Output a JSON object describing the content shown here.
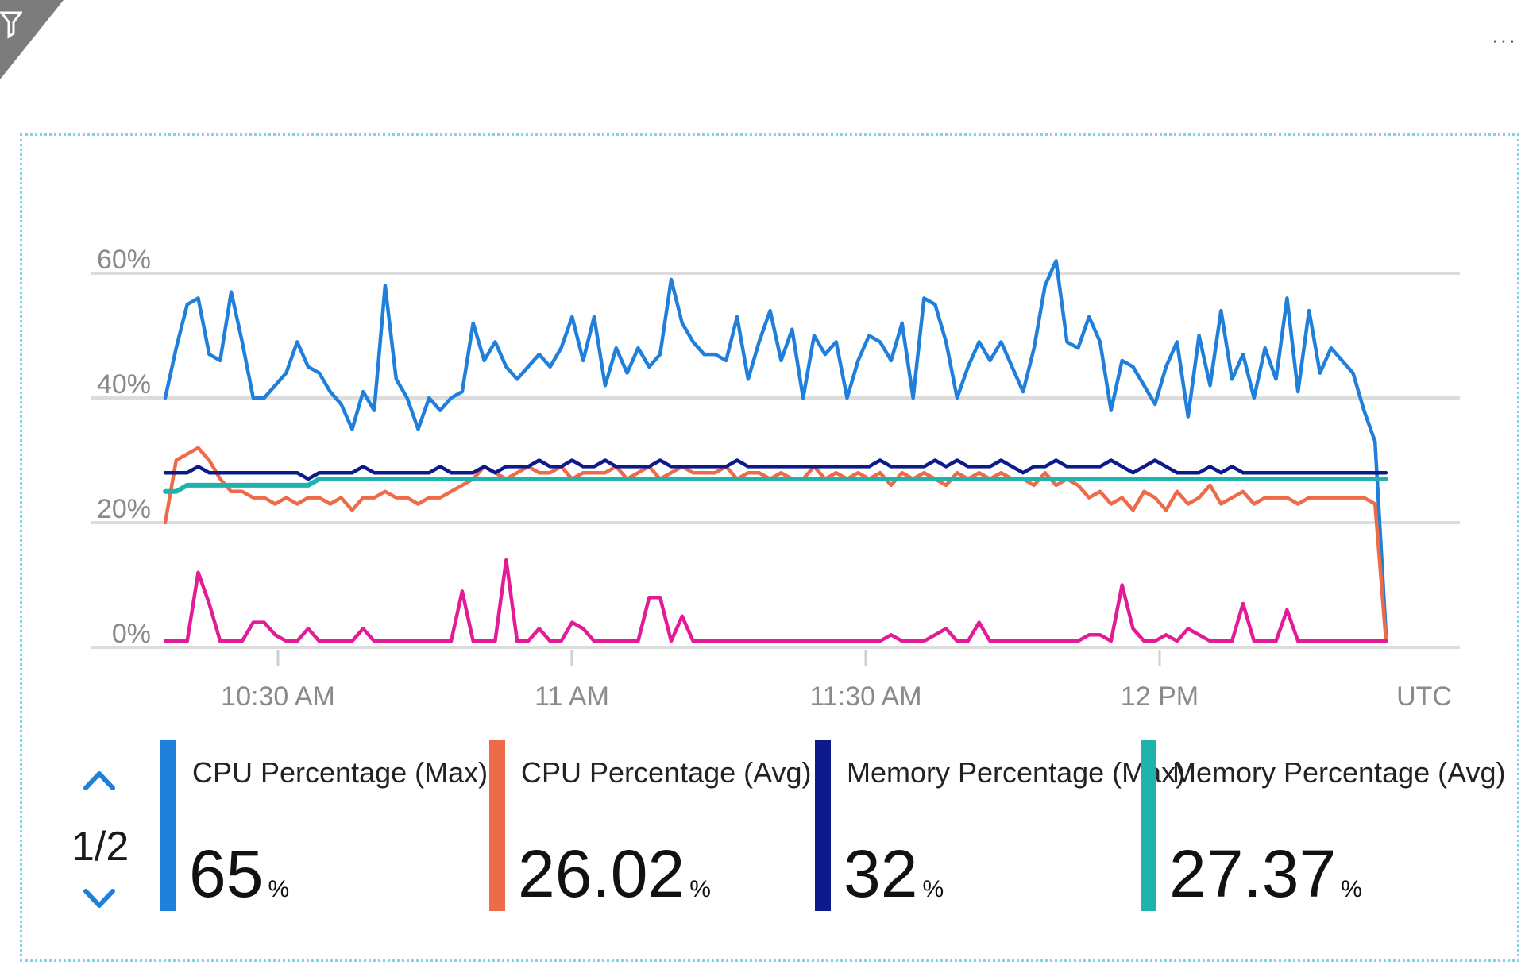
{
  "toolbar": {
    "more_label": "···",
    "more_icon": "ellipsis-icon",
    "filter_icon": "funnel-icon"
  },
  "chart_data": {
    "type": "line",
    "ylim": [
      0,
      65
    ],
    "grid": true,
    "y_ticks": [
      {
        "value": 0,
        "label": "0%"
      },
      {
        "value": 20,
        "label": "20%"
      },
      {
        "value": 40,
        "label": "40%"
      },
      {
        "value": 60,
        "label": "60%"
      }
    ],
    "x_ticks": [
      {
        "value": 1,
        "label": "10:30 AM"
      },
      {
        "value": 3,
        "label": "11 AM"
      },
      {
        "value": 5,
        "label": "11:30 AM"
      },
      {
        "value": 7,
        "label": "12 PM"
      }
    ],
    "x_unit_label": "UTC",
    "x_start_index": 0,
    "series": [
      {
        "name": "CPU Percentage (Max)",
        "color": "#1f7fdb",
        "values": [
          40,
          48,
          55,
          56,
          47,
          46,
          57,
          49,
          40,
          40,
          42,
          44,
          49,
          45,
          44,
          41,
          39,
          35,
          41,
          38,
          58,
          43,
          40,
          35,
          40,
          38,
          40,
          41,
          52,
          46,
          49,
          45,
          43,
          45,
          47,
          45,
          48,
          53,
          46,
          53,
          42,
          48,
          44,
          48,
          45,
          47,
          59,
          52,
          49,
          47,
          47,
          46,
          53,
          43,
          49,
          54,
          46,
          51,
          40,
          50,
          47,
          49,
          40,
          46,
          50,
          49,
          46,
          52,
          40,
          56,
          55,
          49,
          40,
          45,
          49,
          46,
          49,
          45,
          41,
          48,
          58,
          62,
          49,
          48,
          53,
          49,
          38,
          46,
          45,
          42,
          39,
          45,
          49,
          37,
          50,
          42,
          54,
          43,
          47,
          40,
          48,
          43,
          56,
          41,
          54,
          44,
          48,
          46,
          44,
          38,
          33,
          2
        ]
      },
      {
        "name": "CPU Percentage (Avg)",
        "color": "#ee6b4a",
        "values": [
          20,
          30,
          31,
          32,
          30,
          27,
          25,
          25,
          24,
          24,
          23,
          24,
          23,
          24,
          24,
          23,
          24,
          22,
          24,
          24,
          25,
          24,
          24,
          23,
          24,
          24,
          25,
          26,
          27,
          29,
          28,
          27,
          28,
          29,
          28,
          28,
          29,
          27,
          28,
          28,
          28,
          29,
          27,
          28,
          29,
          27,
          28,
          29,
          28,
          28,
          28,
          29,
          27,
          28,
          28,
          27,
          28,
          27,
          27,
          29,
          27,
          28,
          27,
          28,
          27,
          28,
          26,
          28,
          27,
          28,
          27,
          26,
          28,
          27,
          28,
          27,
          28,
          27,
          27,
          26,
          28,
          26,
          27,
          26,
          24,
          25,
          23,
          24,
          22,
          25,
          24,
          22,
          25,
          23,
          24,
          26,
          23,
          24,
          25,
          23,
          24,
          24,
          24,
          23,
          24,
          24,
          24,
          24,
          24,
          24,
          23,
          1
        ]
      },
      {
        "name": "Memory Percentage (Max)",
        "color": "#0d1a8c",
        "values": [
          28,
          28,
          28,
          29,
          28,
          28,
          28,
          28,
          28,
          28,
          28,
          28,
          28,
          27,
          28,
          28,
          28,
          28,
          29,
          28,
          28,
          28,
          28,
          28,
          28,
          29,
          28,
          28,
          28,
          29,
          28,
          29,
          29,
          29,
          30,
          29,
          29,
          30,
          29,
          29,
          30,
          29,
          29,
          29,
          29,
          30,
          29,
          29,
          29,
          29,
          29,
          29,
          30,
          29,
          29,
          29,
          29,
          29,
          29,
          29,
          29,
          29,
          29,
          29,
          29,
          30,
          29,
          29,
          29,
          29,
          30,
          29,
          30,
          29,
          29,
          29,
          30,
          29,
          28,
          29,
          29,
          30,
          29,
          29,
          29,
          29,
          30,
          29,
          28,
          29,
          30,
          29,
          28,
          28,
          28,
          29,
          28,
          29,
          28,
          28,
          28,
          28,
          28,
          28,
          28,
          28,
          28,
          28,
          28,
          28,
          28,
          28
        ]
      },
      {
        "name": "Memory Percentage (Avg)",
        "color": "#1fb3ad",
        "values": [
          25,
          25,
          26,
          26,
          26,
          26,
          26,
          26,
          26,
          26,
          26,
          26,
          26,
          26,
          27,
          27,
          27,
          27,
          27,
          27,
          27,
          27,
          27,
          27,
          27,
          27,
          27,
          27,
          27,
          27,
          27,
          27,
          27,
          27,
          27,
          27,
          27,
          27,
          27,
          27,
          27,
          27,
          27,
          27,
          27,
          27,
          27,
          27,
          27,
          27,
          27,
          27,
          27,
          27,
          27,
          27,
          27,
          27,
          27,
          27,
          27,
          27,
          27,
          27,
          27,
          27,
          27,
          27,
          27,
          27,
          27,
          27,
          27,
          27,
          27,
          27,
          27,
          27,
          27,
          27,
          27,
          27,
          27,
          27,
          27,
          27,
          27,
          27,
          27,
          27,
          27,
          27,
          27,
          27,
          27,
          27,
          27,
          27,
          27,
          27,
          27,
          27,
          27,
          27,
          27,
          27,
          27,
          27,
          27,
          27,
          27,
          27
        ]
      },
      {
        "color": "#e41b97",
        "values": [
          1,
          1,
          1,
          12,
          7,
          1,
          1,
          1,
          4,
          4,
          2,
          1,
          1,
          3,
          1,
          1,
          1,
          1,
          3,
          1,
          1,
          1,
          1,
          1,
          1,
          1,
          1,
          9,
          1,
          1,
          1,
          14,
          1,
          1,
          3,
          1,
          1,
          4,
          3,
          1,
          1,
          1,
          1,
          1,
          8,
          8,
          1,
          5,
          1,
          1,
          1,
          1,
          1,
          1,
          1,
          1,
          1,
          1,
          1,
          1,
          1,
          1,
          1,
          1,
          1,
          1,
          2,
          1,
          1,
          1,
          2,
          3,
          1,
          1,
          4,
          1,
          1,
          1,
          1,
          1,
          1,
          1,
          1,
          1,
          2,
          2,
          1,
          10,
          3,
          1,
          1,
          2,
          1,
          3,
          2,
          1,
          1,
          1,
          7,
          1,
          1,
          1,
          6,
          1,
          1,
          1,
          1,
          1,
          1,
          1,
          1,
          1
        ]
      }
    ]
  },
  "legend": {
    "page_indicator": "1/2",
    "up_icon": "chevron-up-icon",
    "down_icon": "chevron-down-icon",
    "items": [
      {
        "label": "CPU Percentage (Max)",
        "value": "65",
        "unit": "%",
        "color": "#1f7fdb"
      },
      {
        "label": "CPU Percentage (Avg)",
        "value": "26.02",
        "unit": "%",
        "color": "#ee6b4a"
      },
      {
        "label": "Memory Percentage (Max)",
        "value": "32",
        "unit": "%",
        "color": "#0d1a8c"
      },
      {
        "label": "Memory Percentage (Avg)",
        "value": "27.37",
        "unit": "%",
        "color": "#1fb3ad"
      }
    ]
  }
}
